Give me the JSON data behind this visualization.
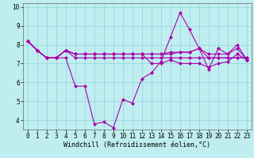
{
  "xlabel": "Windchill (Refroidissement éolien,°C)",
  "xlim": [
    -0.5,
    23.5
  ],
  "ylim": [
    3.5,
    10.2
  ],
  "yticks": [
    4,
    5,
    6,
    7,
    8,
    9,
    10
  ],
  "xticks": [
    0,
    1,
    2,
    3,
    4,
    5,
    6,
    7,
    8,
    9,
    10,
    11,
    12,
    13,
    14,
    15,
    16,
    17,
    18,
    19,
    20,
    21,
    22,
    23
  ],
  "background_color": "#c0eef0",
  "grid_color": "#98d8da",
  "line_color": "#aa00aa",
  "series": [
    [
      8.2,
      7.7,
      7.3,
      7.3,
      7.3,
      5.8,
      5.8,
      3.8,
      3.9,
      3.6,
      5.1,
      4.9,
      6.2,
      6.5,
      7.1,
      8.4,
      9.7,
      8.8,
      7.8,
      6.7,
      7.8,
      7.5,
      8.0,
      7.2
    ],
    [
      8.2,
      7.7,
      7.3,
      7.3,
      7.7,
      7.3,
      7.3,
      7.3,
      7.3,
      7.3,
      7.3,
      7.3,
      7.3,
      7.3,
      7.3,
      7.3,
      7.3,
      7.3,
      7.3,
      7.3,
      7.3,
      7.3,
      7.3,
      7.3
    ],
    [
      8.2,
      7.7,
      7.3,
      7.3,
      7.7,
      7.5,
      7.5,
      7.5,
      7.5,
      7.5,
      7.5,
      7.5,
      7.5,
      7.5,
      7.5,
      7.6,
      7.6,
      7.6,
      7.8,
      7.3,
      7.3,
      7.3,
      7.3,
      7.3
    ],
    [
      8.2,
      7.7,
      7.3,
      7.3,
      7.7,
      7.5,
      7.5,
      7.5,
      7.5,
      7.5,
      7.5,
      7.5,
      7.5,
      7.5,
      7.5,
      7.5,
      7.6,
      7.6,
      7.8,
      7.5,
      7.5,
      7.5,
      7.8,
      7.2
    ],
    [
      8.2,
      7.7,
      7.3,
      7.3,
      7.7,
      7.5,
      7.5,
      7.5,
      7.5,
      7.5,
      7.5,
      7.5,
      7.5,
      7.0,
      7.0,
      7.2,
      7.0,
      7.0,
      7.0,
      6.8,
      7.0,
      7.1,
      7.5,
      7.2
    ]
  ],
  "tick_fontsize": 5.5,
  "xlabel_fontsize": 6.0,
  "marker_size": 2.5,
  "linewidth": 0.8
}
